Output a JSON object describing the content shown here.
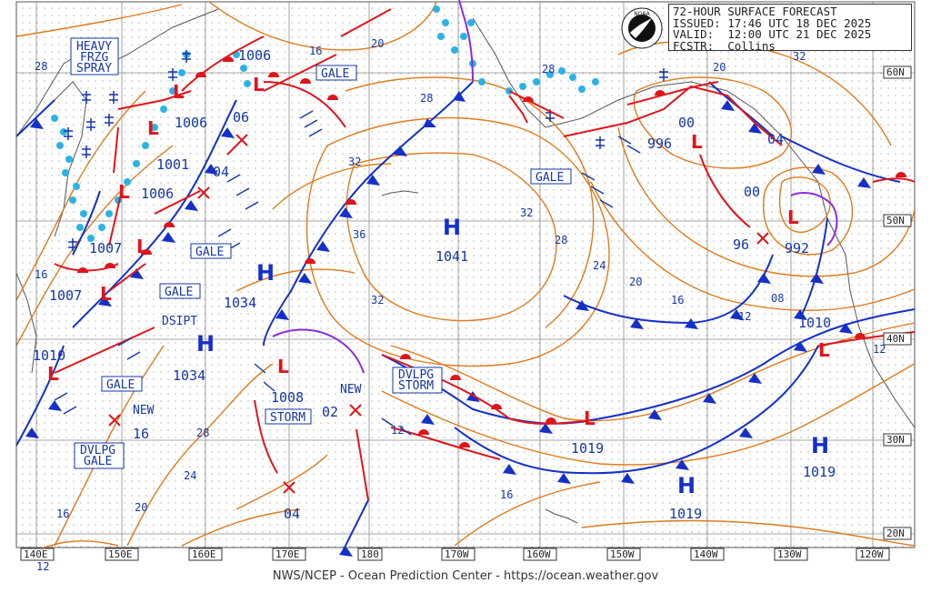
{
  "header": {
    "line1": "72-HOUR SURFACE FORECAST",
    "line2": "ISSUED: 17:46 UTC 18 DEC 2025",
    "line3": "VALID:  12:00 UTC 21 DEC 2025",
    "line4": "FCSTR:  Collins"
  },
  "footer": "NWS/NCEP - Ocean Prediction Center - https://ocean.weather.gov",
  "colors": {
    "isobar": "#e07a1a",
    "low": "#e0141b",
    "high": "#1530c8",
    "label": "#1436a8",
    "ice": "#2bb3e6",
    "occluded": "#8a2be2"
  },
  "lon_labels": [
    "140E",
    "150E",
    "160E",
    "170E",
    "180",
    "170W",
    "160W",
    "150W",
    "140W",
    "130W",
    "120W"
  ],
  "lat_labels": [
    "60N",
    "50N",
    "40N",
    "30N",
    "20N"
  ],
  "highs": [
    {
      "pressure": "1041"
    },
    {
      "pressure": "1034"
    },
    {
      "pressure": "1034"
    },
    {
      "pressure": "1019"
    },
    {
      "pressure": "1019"
    }
  ],
  "lows": [
    {
      "pressure": "1006"
    },
    {
      "pressure": "1006"
    },
    {
      "pressure": "1001"
    },
    {
      "pressure": "1006"
    },
    {
      "pressure": "1007"
    },
    {
      "pressure": "1007"
    },
    {
      "pressure": "1010"
    },
    {
      "pressure": "1008"
    },
    {
      "pressure": "996"
    },
    {
      "pressure": "992"
    },
    {
      "pressure": "1010"
    },
    {
      "pressure": "1019"
    }
  ],
  "forecast_positions": [
    "06",
    "04",
    "04",
    "02",
    "00",
    "00",
    "96",
    "04",
    "16"
  ],
  "labels": {
    "heavy_frzg": [
      "HEAVY",
      "FRZG",
      "SPRAY"
    ],
    "gale": "GALE",
    "storm": "STORM",
    "dvlpg_storm": [
      "DVLPG",
      "STORM"
    ],
    "dvlpg_gale": [
      "DVLPG",
      "GALE"
    ],
    "dsipt": "DSIPT",
    "new": "NEW"
  },
  "isobar_values": [
    "28",
    "16",
    "20",
    "28",
    "32",
    "36",
    "32",
    "28",
    "24",
    "20",
    "16",
    "12",
    "08",
    "32",
    "28",
    "24",
    "20",
    "16",
    "12",
    "16",
    "12",
    "12",
    "20",
    "28",
    "32",
    "16"
  ]
}
